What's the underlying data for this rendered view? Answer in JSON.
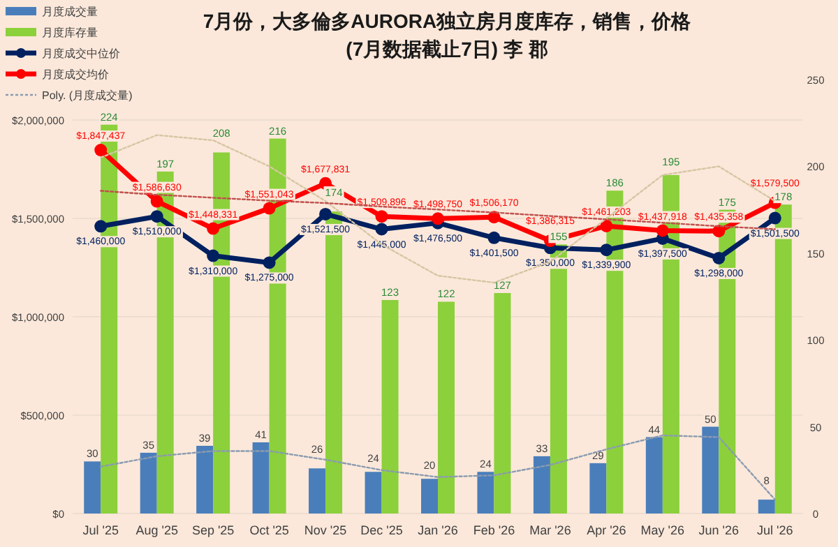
{
  "chart_data": {
    "type": "bar",
    "title": "7月份，大多倫多AURORA独立房月度库存，销售，价格",
    "subtitle": "(7月数据截止7日) 李 郡",
    "categories": [
      "Jul '25",
      "Aug '25",
      "Sep '25",
      "Oct '25",
      "Nov '25",
      "Dec '25",
      "Jan '26",
      "Feb '26",
      "Mar '26",
      "Apr '26",
      "May '26",
      "Jun '26",
      "Jul '26"
    ],
    "ylim": [
      0,
      2000000
    ],
    "yticks": [
      {
        "value": 0,
        "label": "$0"
      },
      {
        "value": 500000,
        "label": "$500,000"
      },
      {
        "value": 1000000,
        "label": "$1,000,000"
      },
      {
        "value": 1500000,
        "label": "$1,500,000"
      },
      {
        "value": 2000000,
        "label": "$2,000,000"
      }
    ],
    "y2lim": [
      0,
      250
    ],
    "y2ticks": [
      0,
      50,
      100,
      150,
      200,
      250
    ],
    "grid": "y",
    "legend": "top left",
    "series": [
      {
        "name": "月度成交量",
        "axis": "y2",
        "color": "#4a7ebb",
        "values": [
          30,
          35,
          39,
          41,
          26,
          24,
          20,
          24,
          33,
          29,
          44,
          50,
          8
        ],
        "value_labels": [
          "30",
          "35",
          "39",
          "41",
          "26",
          "24",
          "20",
          "24",
          "33",
          "29",
          "44",
          "50",
          "8"
        ]
      },
      {
        "name": "月度库存量",
        "axis": "y2",
        "color": "#8cd03c",
        "values": [
          224,
          197,
          208,
          216,
          174,
          123,
          122,
          127,
          155,
          186,
          195,
          175,
          178
        ],
        "value_labels": [
          "224",
          "197",
          "208",
          "216",
          "174",
          "123",
          "122",
          "127",
          "155",
          "186",
          "195",
          "175",
          "178"
        ]
      },
      {
        "name": "月度成交中位价",
        "type": "line",
        "axis": "y",
        "color": "#002060",
        "marker": "circle",
        "values": [
          1460000,
          1510000,
          1310000,
          1275000,
          1521500,
          1445000,
          1476500,
          1401500,
          1350000,
          1339900,
          1397500,
          1298000,
          1501500
        ],
        "value_labels": [
          "$1,460,000",
          "$1,510,000",
          "$1,310,000",
          "$1,275,000",
          "$1,521,500",
          "$1,445,000",
          "$1,476,500",
          "$1,401,500",
          "$1,350,000",
          "$1,339,900",
          "$1,397,500",
          "$1,298,000",
          "$1,501,500"
        ]
      },
      {
        "name": "月度成交均价",
        "type": "line",
        "axis": "y",
        "color": "#ff0000",
        "marker": "circle",
        "values": [
          1847437,
          1586630,
          1448331,
          1551043,
          1677831,
          1509896,
          1498750,
          1506170,
          1386315,
          1461203,
          1437918,
          1435358,
          1579500
        ],
        "value_labels": [
          "$1,847,437",
          "$1,586,630",
          "$1,448,331",
          "$1,551,043",
          "$1,677,831",
          "$1,509,896",
          "$1,498,750",
          "$1,506,170",
          "$1,386,315",
          "$1,461,203",
          "$1,437,918",
          "$1,435,358",
          "$1,579,500"
        ]
      },
      {
        "name": "Poly. (月度成交量)",
        "type": "line",
        "axis": "y2",
        "color": "#8a9bb0",
        "line_style": "dotted",
        "values": [
          27,
          33,
          36,
          36,
          31,
          25,
          21,
          22,
          28,
          37,
          45,
          44,
          8
        ]
      },
      {
        "type": "line",
        "axis": "y2",
        "color": "#d6c6a4",
        "line_style": "dotted",
        "values": [
          205,
          218,
          215,
          200,
          180,
          155,
          137,
          133,
          145,
          170,
          195,
          200,
          180
        ]
      },
      {
        "type": "line",
        "axis": "y",
        "color": "#c0504d",
        "line_style": "dotted",
        "values": [
          1640000,
          1620000,
          1605000,
          1590000,
          1578000,
          1560000,
          1545000,
          1530000,
          1512000,
          1495000,
          1478000,
          1460000,
          1445000
        ]
      }
    ]
  }
}
